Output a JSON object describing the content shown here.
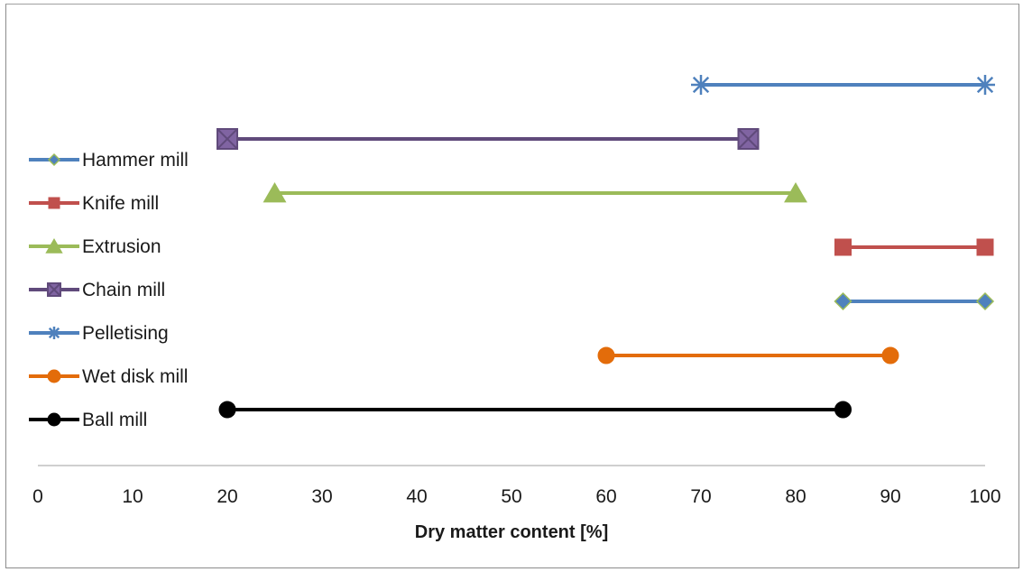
{
  "chart_data": {
    "type": "range",
    "xlabel": "Dry matter content [%]",
    "xlim": [
      0,
      100
    ],
    "xticks": [
      0,
      10,
      20,
      30,
      40,
      50,
      60,
      70,
      80,
      90,
      100
    ],
    "grid": false,
    "legend_position": "left",
    "series": [
      {
        "name": "Hammer mill",
        "range": [
          85,
          100
        ],
        "color": "#4f81bd",
        "marker": "diamond",
        "marker_fill": "#4f81bd",
        "marker_stroke": "#9bbb59"
      },
      {
        "name": "Knife mill",
        "range": [
          85,
          100
        ],
        "color": "#c0504d",
        "marker": "square",
        "marker_fill": "#c0504d",
        "marker_stroke": "#c0504d"
      },
      {
        "name": "Extrusion",
        "range": [
          25,
          80
        ],
        "color": "#9bbb59",
        "marker": "triangle",
        "marker_fill": "#9bbb59",
        "marker_stroke": "#9bbb59"
      },
      {
        "name": "Chain mill",
        "range": [
          20,
          75
        ],
        "color": "#604a7b",
        "marker": "xsquare",
        "marker_fill": "#8064a2",
        "marker_stroke": "#604a7b"
      },
      {
        "name": "Pelletising",
        "range": [
          70,
          100
        ],
        "color": "#4f81bd",
        "marker": "star",
        "marker_fill": "#4f81bd",
        "marker_stroke": "#4f81bd"
      },
      {
        "name": "Wet disk mill",
        "range": [
          60,
          90
        ],
        "color": "#e36c0a",
        "marker": "circle",
        "marker_fill": "#e36c0a",
        "marker_stroke": "#e36c0a"
      },
      {
        "name": "Ball mill",
        "range": [
          20,
          85
        ],
        "color": "#000000",
        "marker": "circle",
        "marker_fill": "#000000",
        "marker_stroke": "#000000"
      }
    ],
    "plot_order": [
      "Pelletising",
      "Chain mill",
      "Extrusion",
      "Knife mill",
      "Hammer mill",
      "Wet disk mill",
      "Ball mill"
    ]
  }
}
